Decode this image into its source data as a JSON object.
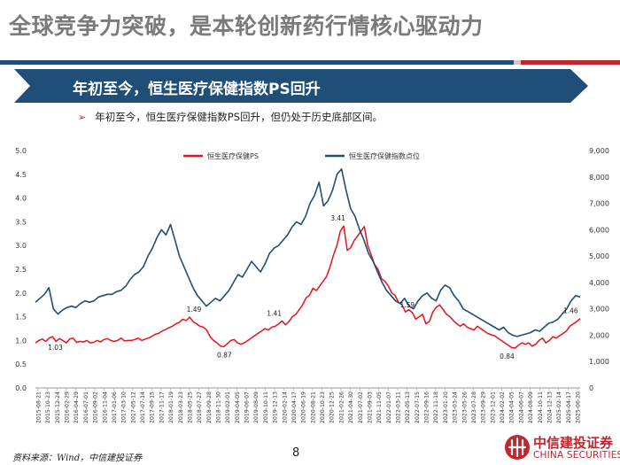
{
  "page": {
    "title": "全球竞争力突破，是本轮创新药行情核心驱动力",
    "section_title": "年初至今，恒生医疗保健指数PS回升",
    "bullet": "年初至今，恒生医疗保健指数PS回升，但仍处于历史底部区间。",
    "source": "资料来源：Wind，中信建投证券",
    "page_number": "8",
    "logo_cn": "中信建投证券",
    "logo_en": "CHINA SECURITIES"
  },
  "colors": {
    "title_gray": "#7a7a7a",
    "brand_blue": "#1f4e79",
    "brand_red": "#c0262d",
    "ps_series": "#e8131c",
    "index_series": "#1f4e79"
  },
  "chart_data": {
    "type": "line",
    "title": "",
    "legend_position": "top",
    "x_tick_labels": [
      "2015-08-21",
      "2015-10-23",
      "2015-12-24",
      "2016-02-29",
      "2016-04-29",
      "2016-07-01",
      "2016-09-02",
      "2016-11-04",
      "2017-01-06",
      "2017-03-10",
      "2017-05-12",
      "2017-07-14",
      "2017-09-15",
      "2017-11-17",
      "2018-01-19",
      "2018-03-23",
      "2018-05-25",
      "2018-07-27",
      "2018-09-28",
      "2018-11-30",
      "2019-02-01",
      "2019-04-05",
      "2019-06-07",
      "2019-08-09",
      "2019-10-11",
      "2019-12-13",
      "2020-02-14",
      "2020-04-17",
      "2020-06-19",
      "2020-08-21",
      "2020-10-23",
      "2020-12-25",
      "2021-02-26",
      "2021-04-30",
      "2021-07-02",
      "2021-09-03",
      "2021-11-05",
      "2022-01-07",
      "2022-03-11",
      "2022-05-13",
      "2022-07-15",
      "2022-09-16",
      "2022-11-18",
      "2023-01-20",
      "2023-03-24",
      "2023-05-26",
      "2023-07-28",
      "2023-09-29",
      "2023-12-01",
      "2024-02-02",
      "2024-04-05",
      "2024-06-07",
      "2024-08-09",
      "2024-10-11",
      "2024-12-13",
      "2025-02-14",
      "2025-04-17",
      "2025-06-20"
    ],
    "y_left": {
      "label": "",
      "ylim": [
        0,
        5
      ],
      "ticks": [
        "0.0",
        "0.5",
        "1.0",
        "1.5",
        "2.0",
        "2.5",
        "3.0",
        "3.5",
        "4.0",
        "4.5",
        "5.0"
      ]
    },
    "y_right": {
      "label": "",
      "ylim": [
        0,
        9000
      ],
      "ticks": [
        "0",
        "1,000",
        "2,000",
        "3,000",
        "4,000",
        "5,000",
        "6,000",
        "7,000",
        "8,000",
        "9,000"
      ]
    },
    "series": [
      {
        "name": "恒生医疗保健PS",
        "axis": "left",
        "t_range": [
          2015.64,
          2025.47
        ],
        "values": [
          0.95,
          1.0,
          1.03,
          0.98,
          1.05,
          1.08,
          0.98,
          1.04,
          1.0,
          0.95,
          1.03,
          1.05,
          0.96,
          0.98,
          0.97,
          1.0,
          0.95,
          0.96,
          1.0,
          0.97,
          1.02,
          1.04,
          1.0,
          0.98,
          1.0,
          1.05,
          0.99,
          1.0,
          1.0,
          1.02,
          1.05,
          1.0,
          1.03,
          1.05,
          1.09,
          1.13,
          1.15,
          1.2,
          1.23,
          1.27,
          1.3,
          1.35,
          1.38,
          1.45,
          1.42,
          1.49,
          1.4,
          1.35,
          1.3,
          1.28,
          1.22,
          1.08,
          1.0,
          0.95,
          0.88,
          0.87,
          0.93,
          1.0,
          1.02,
          0.95,
          0.92,
          0.95,
          1.0,
          1.05,
          1.1,
          1.15,
          1.2,
          1.25,
          1.22,
          1.28,
          1.3,
          1.35,
          1.41,
          1.33,
          1.4,
          1.5,
          1.55,
          1.65,
          1.75,
          1.9,
          1.95,
          2.1,
          2.05,
          2.15,
          2.25,
          2.35,
          2.55,
          2.8,
          3.0,
          3.3,
          3.41,
          2.9,
          2.95,
          3.1,
          3.2,
          3.3,
          3.4,
          3.0,
          2.8,
          2.6,
          2.5,
          2.3,
          2.25,
          2.15,
          2.0,
          1.95,
          1.8,
          1.75,
          1.6,
          1.65,
          1.59,
          1.45,
          1.5,
          1.55,
          1.35,
          1.4,
          1.6,
          1.7,
          1.75,
          1.65,
          1.55,
          1.5,
          1.42,
          1.35,
          1.3,
          1.35,
          1.28,
          1.25,
          1.22,
          1.3,
          1.25,
          1.2,
          1.15,
          1.12,
          1.1,
          1.05,
          1.0,
          0.95,
          0.9,
          0.85,
          0.84,
          0.9,
          0.95,
          0.92,
          0.95,
          0.88,
          0.92,
          1.0,
          1.05,
          0.95,
          1.0,
          1.08,
          1.05,
          1.1,
          1.15,
          1.2,
          1.3,
          1.35,
          1.4,
          1.46
        ]
      },
      {
        "name": "恒生医疗保健指数点位",
        "axis": "right",
        "t_range": [
          2015.64,
          2025.47
        ],
        "values": [
          3250,
          3400,
          3550,
          3800,
          3000,
          2800,
          2950,
          3050,
          3100,
          3050,
          3200,
          3300,
          3250,
          3300,
          3450,
          3500,
          3550,
          3550,
          3650,
          3700,
          3850,
          4100,
          4300,
          4400,
          4600,
          5000,
          5300,
          5700,
          6000,
          5800,
          6200,
          5600,
          5000,
          4600,
          4200,
          3800,
          3500,
          3300,
          3100,
          3250,
          3400,
          3300,
          3500,
          3700,
          4000,
          4300,
          4200,
          4500,
          4800,
          4600,
          4400,
          4700,
          5100,
          5300,
          5400,
          5600,
          5800,
          6100,
          6300,
          6200,
          6500,
          7000,
          7300,
          7800,
          6900,
          7100,
          7500,
          8100,
          8300,
          7500,
          6800,
          6500,
          6000,
          5600,
          5100,
          4800,
          4400,
          4000,
          3700,
          3500,
          3300,
          3200,
          3400,
          3100,
          3000,
          3300,
          3500,
          3600,
          3400,
          3300,
          3700,
          3900,
          3800,
          3500,
          3300,
          3000,
          2900,
          2800,
          2700,
          2600,
          2500,
          2400,
          2300,
          2200,
          2300,
          2100,
          2000,
          1950,
          2000,
          2050,
          2100,
          2200,
          2150,
          2300,
          2450,
          2500,
          2600,
          2800,
          3000,
          3300,
          3500,
          3450
        ]
      }
    ],
    "annotations": [
      {
        "text": "1.03",
        "series": "恒生医疗保健PS",
        "t": 2016.0,
        "value": 1.03
      },
      {
        "text": "1.49",
        "series": "恒生医疗保健PS",
        "t": 2018.5,
        "value": 1.49
      },
      {
        "text": "0.87",
        "series": "恒生医疗保健PS",
        "t": 2019.05,
        "value": 0.87
      },
      {
        "text": "1.41",
        "series": "恒生医疗保健PS",
        "t": 2019.95,
        "value": 1.41
      },
      {
        "text": "3.41",
        "series": "恒生医疗保健PS",
        "t": 2021.1,
        "value": 3.41
      },
      {
        "text": "1.59",
        "series": "恒生医疗保健PS",
        "t": 2022.35,
        "value": 1.59
      },
      {
        "text": "0.84",
        "series": "恒生医疗保健PS",
        "t": 2024.15,
        "value": 0.84
      },
      {
        "text": "1.46",
        "series": "恒生医疗保健PS",
        "t": 2025.3,
        "value": 1.46
      }
    ]
  }
}
